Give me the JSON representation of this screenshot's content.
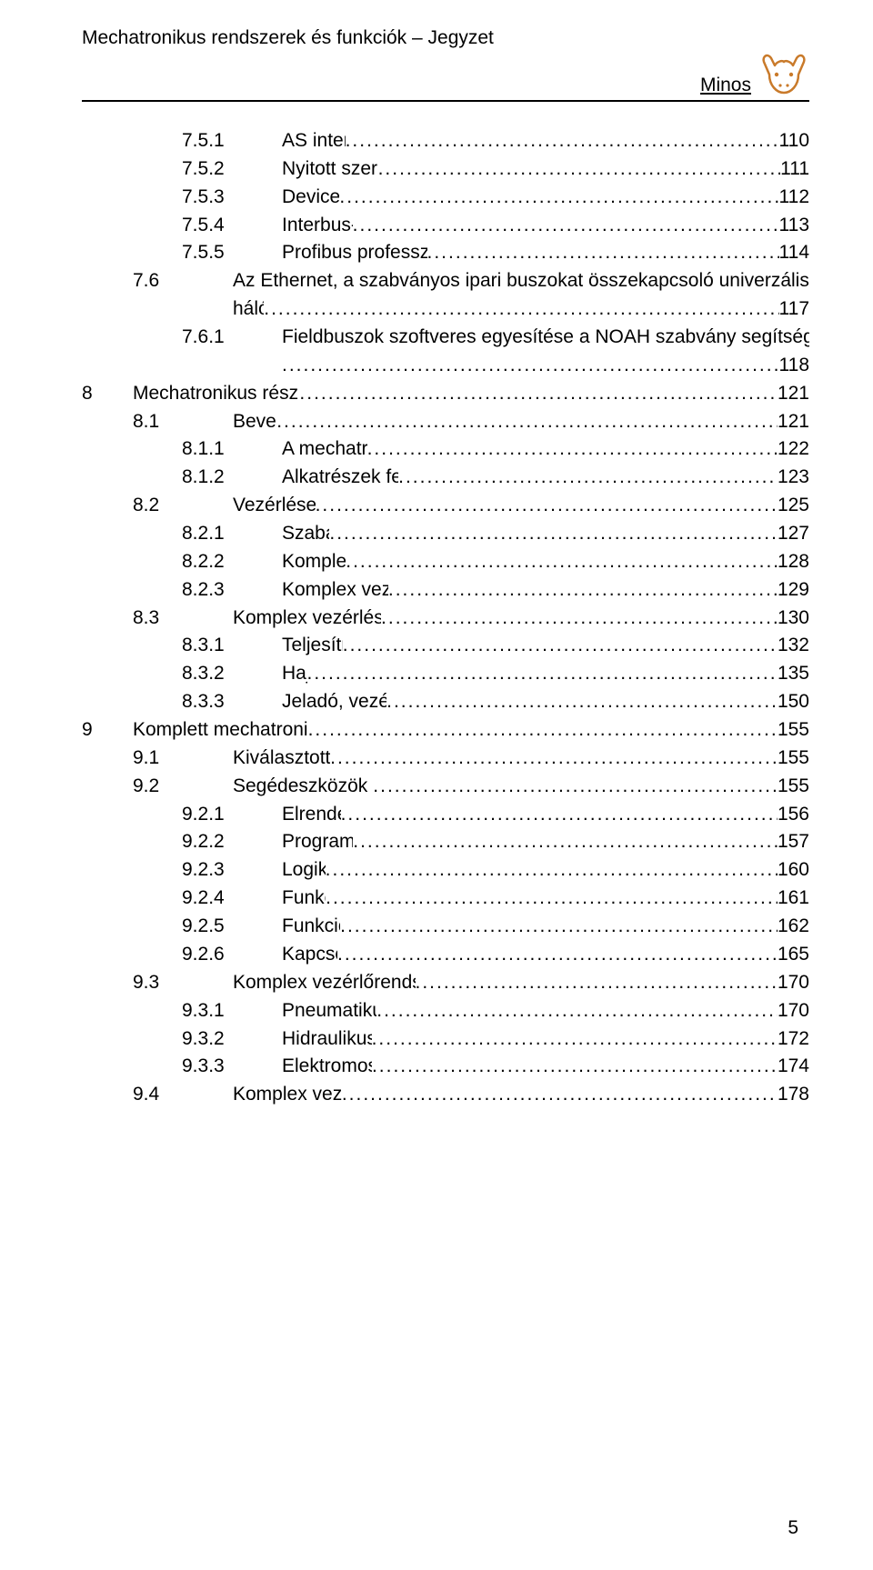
{
  "header": {
    "title": "Mechatronikus rendszerek és funkciók – Jegyzet",
    "subtitle": "Minos"
  },
  "page_number": "5",
  "toc": [
    {
      "lvl": 3,
      "num": "7.5.1",
      "title": "AS interfész busz",
      "page": "110"
    },
    {
      "lvl": 3,
      "num": "7.5.2",
      "title": "Nyitott szerkezetű CAN busz",
      "page": "111"
    },
    {
      "lvl": 3,
      "num": "7.5.3",
      "title": "DeviceNet busz",
      "page": "112"
    },
    {
      "lvl": 3,
      "num": "7.5.4",
      "title": "Interbus-S fieldbusz",
      "page": "113"
    },
    {
      "lvl": 3,
      "num": "7.5.5",
      "title": "Profibus professzionális busz hálózat (-DP, -FMS)",
      "page": "114"
    },
    {
      "lvl": 2,
      "num": "7.6",
      "title": "Az Ethernet, a szabványos ipari buszokat összekapcsoló univerzális hálózat",
      "page": "117",
      "wrap": true
    },
    {
      "lvl": 3,
      "num": "7.6.1",
      "title": "Fieldbuszok szoftveres egyesítése a NOAH szabvány segítségével ",
      "page": "118",
      "wrap2": true
    },
    {
      "lvl": 0,
      "num": "8",
      "title": "Mechatronikus részrendszerek fejlesztése",
      "page": "121"
    },
    {
      "lvl": 2,
      "num": "8.1",
      "title": "Bevezetés",
      "page": "121"
    },
    {
      "lvl": 3,
      "num": "8.1.1",
      "title": "A mechatronika kifejezés",
      "page": "122"
    },
    {
      "lvl": 3,
      "num": "8.1.2",
      "title": "Alkatrészek feldolgozása és szerelés",
      "page": "123"
    },
    {
      "lvl": 2,
      "num": "8.2",
      "title": "Vezérlések felépítése",
      "page": "125"
    },
    {
      "lvl": 3,
      "num": "8.2.1",
      "title": "Szabályozás",
      "page": "127"
    },
    {
      "lvl": 3,
      "num": "8.2.2",
      "title": "Komplex vezérlés",
      "page": "128"
    },
    {
      "lvl": 3,
      "num": "8.2.3",
      "title": "Komplex vezérlések különbségei",
      "page": "129"
    },
    {
      "lvl": 2,
      "num": "8.3",
      "title": "Komplex vezérlések teljesítmény- és jelrésze",
      "page": "130"
    },
    {
      "lvl": 3,
      "num": "8.3.1",
      "title": "Teljesítményrész",
      "page": "132"
    },
    {
      "lvl": 3,
      "num": "8.3.2",
      "title": "Hajtás",
      "page": "135"
    },
    {
      "lvl": 3,
      "num": "8.3.3",
      "title": "Jeladó, vezérlő és beállító tagok",
      "page": "150"
    },
    {
      "lvl": 0,
      "num": "9",
      "title": "Komplett mechatronikus rendszer fejlesztése",
      "page": "155"
    },
    {
      "lvl": 2,
      "num": "9.1",
      "title": "Kiválasztott komponensek",
      "page": "155"
    },
    {
      "lvl": 2,
      "num": "9.2",
      "title": "Segédeszközök a vezérlés fejlesztéséhez",
      "page": "155"
    },
    {
      "lvl": 3,
      "num": "9.2.1",
      "title": "Elrendezési terv",
      "page": "156"
    },
    {
      "lvl": 3,
      "num": "9.2.2",
      "title": "Programlefutási terv",
      "page": "157"
    },
    {
      "lvl": 3,
      "num": "9.2.3",
      "title": "Logikai terv",
      "page": "160"
    },
    {
      "lvl": 3,
      "num": "9.2.4",
      "title": "Funkcióterv",
      "page": "161"
    },
    {
      "lvl": 3,
      "num": "9.2.5",
      "title": "Funkciódiagram",
      "page": "162"
    },
    {
      "lvl": 3,
      "num": "9.2.6",
      "title": "Kapcsolási rajz",
      "page": "165"
    },
    {
      "lvl": 2,
      "num": "9.3",
      "title": "Komplex vezérlőrendszerek kapcsolási rajzainak  elkészítése",
      "page": "170"
    },
    {
      "lvl": 3,
      "num": "9.3.1",
      "title": "Pneumatikus kapcsolási rajz",
      "page": "170"
    },
    {
      "lvl": 3,
      "num": "9.3.2",
      "title": "Hidraulikus kapcsolási rajz",
      "page": "172"
    },
    {
      "lvl": 3,
      "num": "9.3.3",
      "title": "Elektromos kapcsolási rajz",
      "page": "174"
    },
    {
      "lvl": 2,
      "num": "9.4",
      "title": "Komplex vezérlés létrehozása",
      "page": "178"
    }
  ]
}
